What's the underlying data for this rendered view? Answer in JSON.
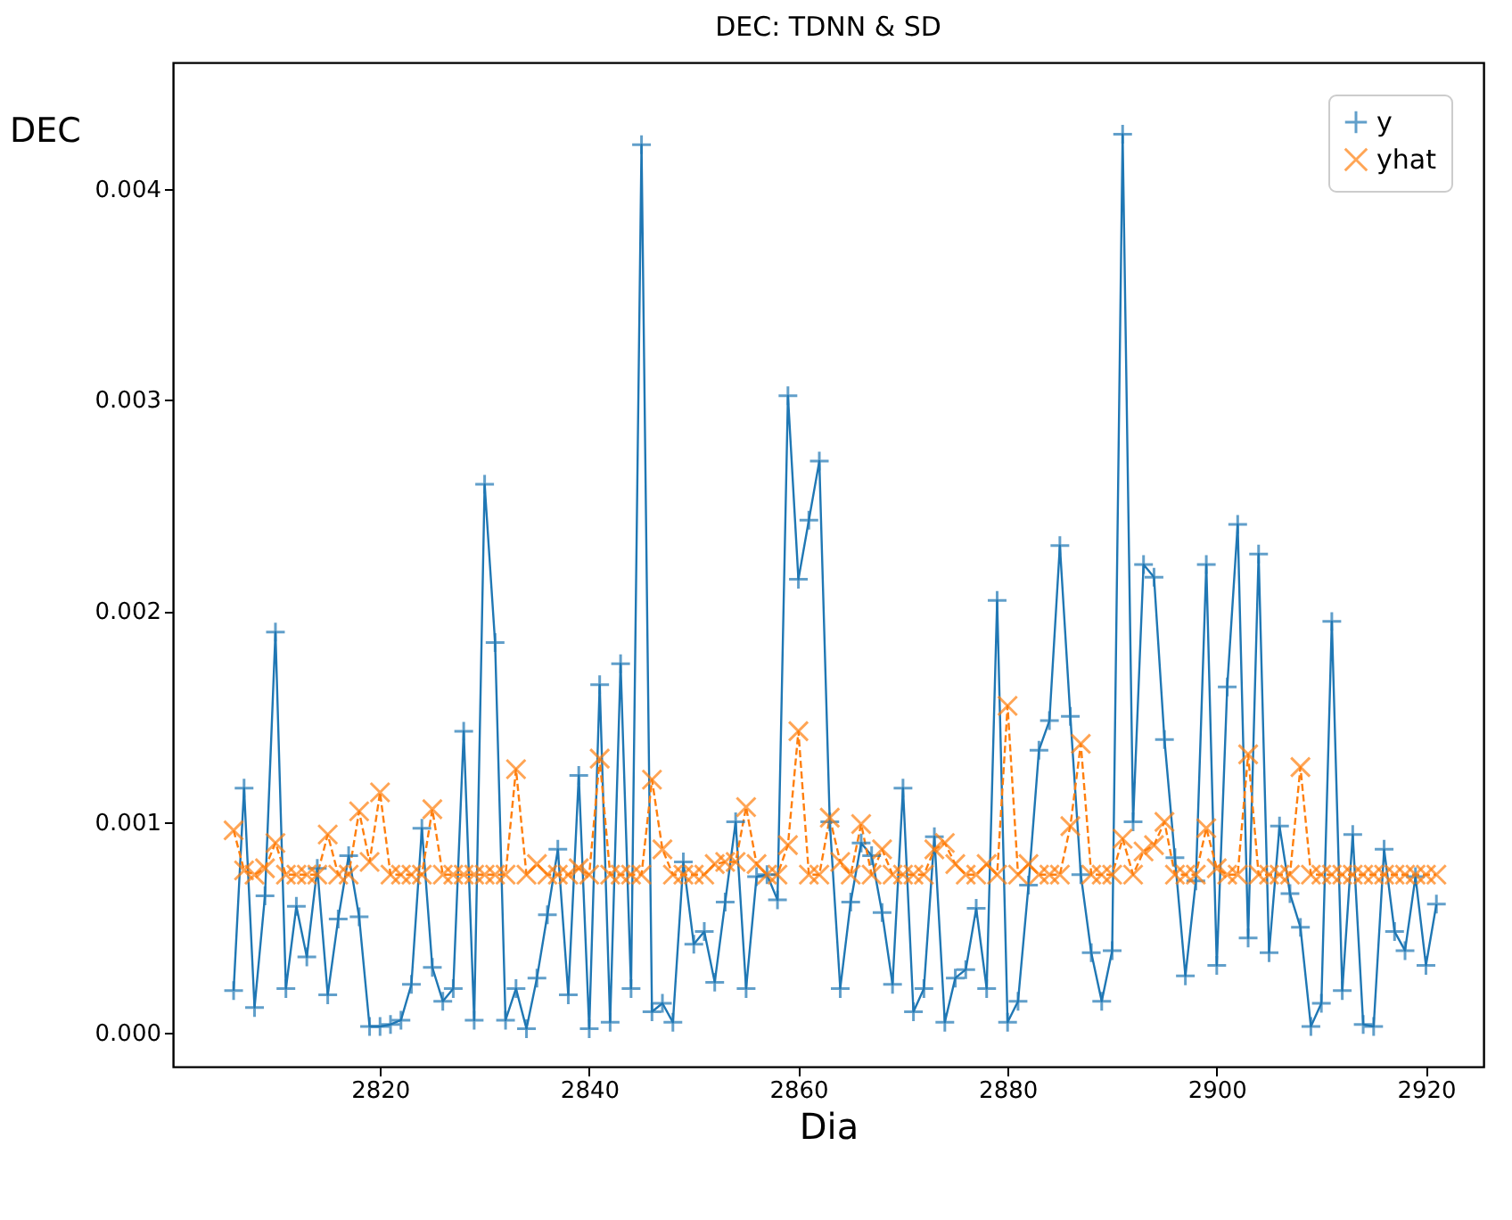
{
  "chart_data": {
    "type": "line",
    "title": "DEC: TDNN & SD",
    "xlabel": "Dia",
    "ylabel": "DEC",
    "x": [
      2806,
      2807,
      2808,
      2809,
      2810,
      2811,
      2812,
      2813,
      2814,
      2815,
      2816,
      2817,
      2818,
      2819,
      2820,
      2821,
      2822,
      2823,
      2824,
      2825,
      2826,
      2827,
      2828,
      2829,
      2830,
      2831,
      2832,
      2833,
      2834,
      2835,
      2836,
      2837,
      2838,
      2839,
      2840,
      2841,
      2842,
      2843,
      2844,
      2845,
      2846,
      2847,
      2848,
      2849,
      2850,
      2851,
      2852,
      2853,
      2854,
      2855,
      2856,
      2857,
      2858,
      2859,
      2860,
      2861,
      2862,
      2863,
      2864,
      2865,
      2866,
      2867,
      2868,
      2869,
      2870,
      2871,
      2872,
      2873,
      2874,
      2875,
      2876,
      2877,
      2878,
      2879,
      2880,
      2881,
      2882,
      2883,
      2884,
      2885,
      2886,
      2887,
      2888,
      2889,
      2890,
      2891,
      2892,
      2893,
      2894,
      2895,
      2896,
      2897,
      2898,
      2899,
      2900,
      2901,
      2902,
      2903,
      2904,
      2905,
      2906,
      2907,
      2908,
      2909,
      2910,
      2911,
      2912,
      2913,
      2914,
      2915,
      2916,
      2917,
      2918,
      2919,
      2920,
      2921
    ],
    "series": [
      {
        "name": "y",
        "color": "#1f77b4",
        "marker": "plus",
        "line_style": "solid",
        "values": [
          0.0002,
          0.00116,
          0.00012,
          0.00065,
          0.0019,
          0.00021,
          0.0006,
          0.00036,
          0.00078,
          0.00018,
          0.00054,
          0.00084,
          0.00055,
          3e-05,
          3e-05,
          4e-05,
          6e-05,
          0.00023,
          0.00097,
          0.00031,
          0.00015,
          0.00021,
          0.00143,
          6e-05,
          0.0026,
          0.00185,
          6e-05,
          0.00021,
          2e-05,
          0.00026,
          0.00056,
          0.00087,
          0.00018,
          0.00122,
          2e-05,
          0.00165,
          5e-05,
          0.00175,
          0.00021,
          0.00421,
          0.0001,
          0.00014,
          5e-05,
          0.00081,
          0.00042,
          0.00048,
          0.00024,
          0.00062,
          0.001,
          0.00021,
          0.00074,
          0.00075,
          0.00063,
          0.00302,
          0.00215,
          0.00243,
          0.00271,
          0.001,
          0.00021,
          0.00062,
          0.0009,
          0.00084,
          0.00057,
          0.00023,
          0.00116,
          0.0001,
          0.00021,
          0.00093,
          5e-05,
          0.00026,
          0.0003,
          0.00059,
          0.00021,
          0.00205,
          5e-05,
          0.00015,
          0.0007,
          0.00134,
          0.00148,
          0.00231,
          0.0015,
          0.00075,
          0.00038,
          0.00015,
          0.00039,
          0.00426,
          0.001,
          0.00222,
          0.00216,
          0.00139,
          0.00083,
          0.00027,
          0.00072,
          0.00222,
          0.00032,
          0.00164,
          0.00241,
          0.00045,
          0.00227,
          0.00038,
          0.00098,
          0.00066,
          0.0005,
          3e-05,
          0.00014,
          0.00195,
          0.0002,
          0.00094,
          4e-05,
          3e-05,
          0.00087,
          0.00048,
          0.00039,
          0.00074,
          0.00032,
          0.00061
        ]
      },
      {
        "name": "yhat",
        "color": "#ff7f0e",
        "marker": "x",
        "line_style": "dashed",
        "values": [
          0.00096,
          0.00077,
          0.00075,
          0.00078,
          0.0009,
          0.00075,
          0.00075,
          0.00075,
          0.00075,
          0.00094,
          0.00075,
          0.00075,
          0.00105,
          0.00081,
          0.00114,
          0.00075,
          0.00075,
          0.00075,
          0.00075,
          0.00106,
          0.00075,
          0.00075,
          0.00075,
          0.00075,
          0.00075,
          0.00075,
          0.00075,
          0.00125,
          0.00075,
          0.0008,
          0.00075,
          0.00075,
          0.00075,
          0.00078,
          0.00075,
          0.0013,
          0.00075,
          0.00075,
          0.00075,
          0.00075,
          0.0012,
          0.00087,
          0.00075,
          0.00075,
          0.00075,
          0.00075,
          0.0008,
          0.00081,
          0.00081,
          0.00107,
          0.0008,
          0.00075,
          0.00075,
          0.00089,
          0.00143,
          0.00075,
          0.00075,
          0.00102,
          0.00081,
          0.00075,
          0.00099,
          0.00075,
          0.00087,
          0.00075,
          0.00075,
          0.00075,
          0.00075,
          0.00087,
          0.0009,
          0.0008,
          0.00075,
          0.00075,
          0.0008,
          0.00075,
          0.00155,
          0.00075,
          0.0008,
          0.00075,
          0.00075,
          0.00075,
          0.00098,
          0.00137,
          0.00075,
          0.00075,
          0.00075,
          0.00092,
          0.00075,
          0.00086,
          0.00089,
          0.001,
          0.00075,
          0.00075,
          0.00075,
          0.00097,
          0.00078,
          0.00075,
          0.00075,
          0.00132,
          0.00075,
          0.00075,
          0.00075,
          0.00075,
          0.00126,
          0.00075,
          0.00075,
          0.00075,
          0.00075,
          0.00075,
          0.00075,
          0.00075,
          0.00075,
          0.00075,
          0.00075,
          0.00075,
          0.00075,
          0.00075
        ]
      }
    ],
    "xlim": [
      2800.2,
      2925.5
    ],
    "xticks": [
      2820,
      2840,
      2860,
      2880,
      2900,
      2920
    ],
    "ylim": [
      -0.00016,
      0.0046
    ],
    "yticks": [
      {
        "value": 0,
        "label": "0.000"
      },
      {
        "value": 0.001,
        "label": "0.001"
      },
      {
        "value": 0.002,
        "label": "0.002"
      },
      {
        "value": 0.003,
        "label": "0.003"
      },
      {
        "value": 0.004,
        "label": "0.004"
      }
    ],
    "grid": false,
    "legend": "top right"
  }
}
